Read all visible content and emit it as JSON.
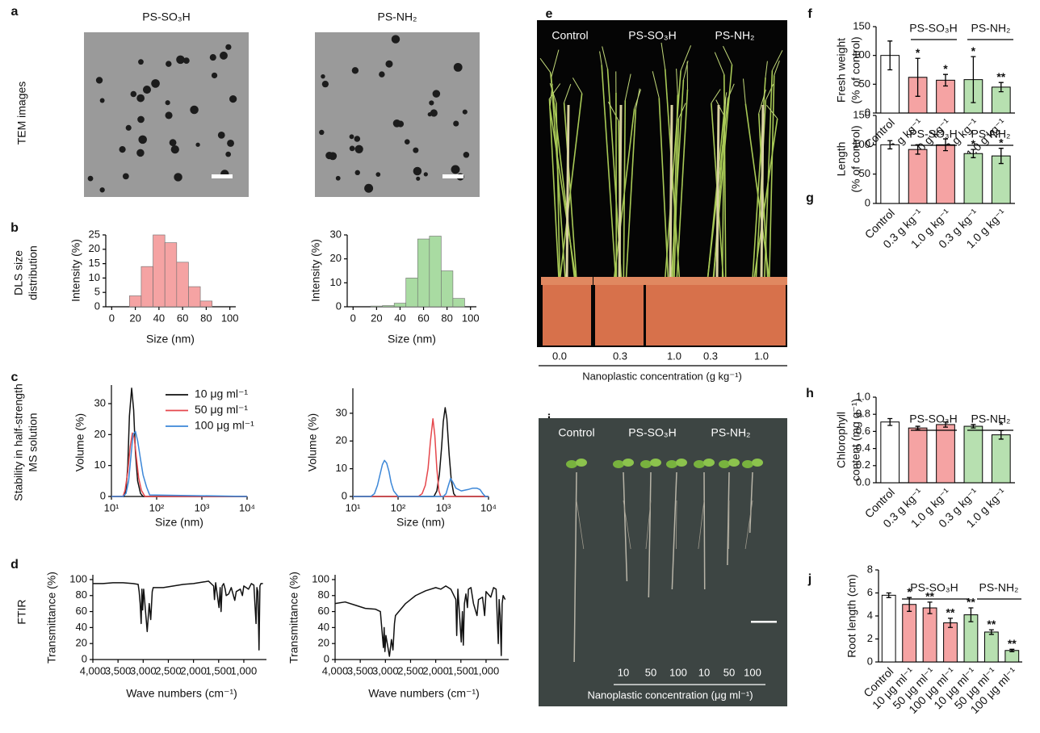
{
  "panel_letters": [
    "a",
    "b",
    "c",
    "d",
    "e",
    "f",
    "g",
    "h",
    "i",
    "j"
  ],
  "row_labels": {
    "tem": "TEM images",
    "dls": [
      "DLS size",
      "distribution"
    ],
    "stability": [
      "Stability in half-strength",
      "MS solution"
    ],
    "ftir": "FTIR"
  },
  "tem_images": [
    {
      "label": "PS-SO₃H"
    },
    {
      "label": "PS-NH₂"
    }
  ],
  "photos": [
    {
      "labels": [
        "Control",
        "PS-SO₃H",
        "PS-NH₂"
      ],
      "tick_labels": [
        "0.0",
        "0.3",
        "1.0",
        "0.3",
        "1.0"
      ],
      "xlabel": "Nanoplastic concentration (g kg⁻¹)"
    },
    {
      "labels": [
        "Control",
        "PS-SO₃H",
        "PS-NH₂"
      ],
      "tick_labels": [
        "10",
        "50",
        "100",
        "10",
        "50",
        "100"
      ],
      "xlabel": "Nanoplastic concentration (μg ml⁻¹)"
    }
  ],
  "chart_data": [
    {
      "type": "histogram",
      "xlabel": "Size (nm)",
      "ylabel": "Intensity (%)",
      "color": "#f5a3a3",
      "bins": [
        15,
        25,
        35,
        45,
        55,
        65,
        75,
        85
      ],
      "values": [
        3.8,
        14,
        25,
        22.3,
        15.5,
        7,
        2
      ],
      "xlim": [
        -5,
        105
      ],
      "xticks": [
        0,
        20,
        40,
        60,
        80,
        100
      ],
      "ylim": [
        0,
        25
      ],
      "yticks": [
        0,
        5,
        10,
        15,
        20,
        25
      ]
    },
    {
      "type": "histogram",
      "xlabel": "Size (nm)",
      "ylabel": "Intensity (%)",
      "color": "#a9dba2",
      "bins": [
        15,
        25,
        35,
        45,
        55,
        65,
        75,
        85,
        95
      ],
      "values": [
        0.3,
        0.5,
        1.5,
        12,
        28.3,
        29.5,
        15,
        3.5
      ],
      "xlim": [
        -5,
        105
      ],
      "xticks": [
        0,
        20,
        40,
        60,
        80,
        100
      ],
      "ylim": [
        0,
        30
      ],
      "yticks": [
        0,
        10,
        20,
        30
      ]
    },
    {
      "type": "line",
      "xlabel": "Size (nm)",
      "ylabel": "Volume (%)",
      "xlog": true,
      "xlim": [
        10,
        10000
      ],
      "xticks": [
        {
          "value": 10,
          "label": "10¹"
        },
        {
          "value": 100,
          "label": "10²"
        },
        {
          "value": 1000,
          "label": "10³"
        },
        {
          "value": 10000,
          "label": "10⁴"
        }
      ],
      "ylim": [
        0,
        36
      ],
      "yticks": [
        0,
        10,
        20,
        30
      ],
      "series": [
        {
          "name": "10 μg ml⁻¹",
          "color": "#111111",
          "x": [
            10,
            19,
            21,
            23,
            25,
            28,
            31,
            34,
            38,
            44,
            50,
            10000
          ],
          "values": [
            0,
            0,
            2,
            10,
            26,
            35,
            28,
            14,
            5,
            1,
            0,
            0
          ]
        },
        {
          "name": "50 μg ml⁻¹",
          "color": "#e5474c",
          "x": [
            10,
            18,
            20,
            23,
            26,
            29,
            32,
            36,
            40,
            46,
            55,
            10000
          ],
          "values": [
            0,
            0,
            2,
            8,
            16,
            20.5,
            19,
            12,
            6,
            2,
            0,
            0
          ]
        },
        {
          "name": "100 μg ml⁻¹",
          "color": "#3c87d8",
          "x": [
            10,
            18,
            21,
            24,
            27,
            30,
            34,
            38,
            44,
            50,
            60,
            70,
            10000
          ],
          "values": [
            0,
            0,
            1,
            5,
            13,
            20,
            21,
            18,
            12,
            7,
            3,
            0.5,
            0
          ]
        }
      ]
    },
    {
      "type": "line",
      "xlabel": "Size (nm)",
      "ylabel": "Volume (%)",
      "xlog": true,
      "xlim": [
        10,
        10000
      ],
      "xticks": [
        {
          "value": 10,
          "label": "10¹"
        },
        {
          "value": 100,
          "label": "10²"
        },
        {
          "value": 1000,
          "label": "10³"
        },
        {
          "value": 10000,
          "label": "10⁴"
        }
      ],
      "ylim": [
        0,
        39
      ],
      "yticks": [
        0,
        10,
        20,
        30
      ],
      "series": [
        {
          "color": "#111111",
          "x": [
            10,
            620,
            720,
            820,
            920,
            1000,
            1100,
            1200,
            1350,
            1500,
            1700,
            1900,
            10000
          ],
          "values": [
            0,
            0,
            2,
            8,
            18,
            27,
            32,
            28,
            15,
            6,
            1,
            0,
            0
          ]
        },
        {
          "color": "#e5474c",
          "x": [
            10,
            280,
            340,
            400,
            460,
            520,
            590,
            650,
            720,
            800,
            880,
            10000
          ],
          "values": [
            0,
            0,
            1,
            4,
            10,
            20,
            28,
            22,
            10,
            2,
            0,
            0
          ]
        },
        {
          "color": "#3c87d8",
          "x": [
            10,
            25,
            30,
            35,
            40,
            45,
            50,
            56,
            63,
            70,
            80,
            100,
            1000,
            1150,
            1300,
            1450,
            1650,
            1900,
            2500,
            3500,
            4500,
            5500,
            6500,
            7500,
            8500,
            10000
          ],
          "values": [
            0,
            0,
            1,
            4,
            8,
            11.5,
            13,
            12,
            9,
            5,
            2,
            0,
            0,
            1,
            4,
            6.5,
            5,
            3,
            2,
            2.5,
            3,
            3,
            2.5,
            1,
            0,
            0
          ]
        }
      ]
    },
    {
      "type": "line",
      "xlabel": "Wave numbers (cm⁻¹)",
      "ylabel": "Transmittance (%)",
      "xlim": [
        4000,
        550
      ],
      "xticks": [
        {
          "value": 4000,
          "label": "4,000"
        },
        {
          "value": 3500,
          "label": "3,500"
        },
        {
          "value": 3000,
          "label": "3,000"
        },
        {
          "value": 2500,
          "label": "2,500"
        },
        {
          "value": 2000,
          "label": "2,000"
        },
        {
          "value": 1500,
          "label": "1,500"
        },
        {
          "value": 1000,
          "label": "1,000"
        }
      ],
      "ylim": [
        0,
        106
      ],
      "yticks": [
        0,
        20,
        40,
        60,
        80,
        100
      ],
      "series": [
        {
          "color": "#111111",
          "x": [
            4000,
            3800,
            3600,
            3400,
            3200,
            3100,
            3080,
            3060,
            3040,
            3025,
            3010,
            2990,
            2920,
            2880,
            2850,
            2820,
            2800,
            2600,
            2400,
            2200,
            2000,
            1900,
            1800,
            1700,
            1600,
            1583,
            1560,
            1493,
            1470,
            1452,
            1430,
            1400,
            1370,
            1350,
            1300,
            1250,
            1180,
            1150,
            1070,
            1028,
            1000,
            906,
            850,
            800,
            757,
            740,
            720,
            698,
            680,
            660,
            620
          ],
          "values": [
            95,
            95,
            96,
            96,
            95,
            94,
            85,
            70,
            45,
            88,
            62,
            88,
            35,
            70,
            50,
            85,
            90,
            90,
            92,
            94,
            95,
            96,
            97,
            98,
            92,
            75,
            96,
            65,
            90,
            60,
            92,
            95,
            88,
            80,
            82,
            90,
            74,
            85,
            88,
            80,
            92,
            88,
            95,
            93,
            45,
            90,
            85,
            12,
            92,
            95,
            95
          ]
        }
      ]
    },
    {
      "type": "line",
      "xlabel": "Wave numbers (cm⁻¹)",
      "ylabel": "Transmittance (%)",
      "xlim": [
        4000,
        550
      ],
      "xticks": [
        {
          "value": 4000,
          "label": "4,000"
        },
        {
          "value": 3500,
          "label": "3,500"
        },
        {
          "value": 3000,
          "label": "3,000"
        },
        {
          "value": 2500,
          "label": "2,500"
        },
        {
          "value": 2000,
          "label": "2,000"
        },
        {
          "value": 1500,
          "label": "1,500"
        },
        {
          "value": 1000,
          "label": "1,000"
        }
      ],
      "ylim": [
        0,
        106
      ],
      "yticks": [
        0,
        20,
        40,
        60,
        80,
        100
      ],
      "series": [
        {
          "color": "#111111",
          "x": [
            4000,
            3800,
            3600,
            3400,
            3200,
            3100,
            3080,
            3060,
            3040,
            3025,
            3010,
            2990,
            2920,
            2880,
            2850,
            2820,
            2800,
            2600,
            2400,
            2200,
            2000,
            1900,
            1800,
            1700,
            1600,
            1583,
            1560,
            1493,
            1470,
            1452,
            1430,
            1400,
            1370,
            1350,
            1300,
            1250,
            1180,
            1150,
            1070,
            1028,
            1000,
            906,
            850,
            800,
            757,
            740,
            720,
            698,
            680,
            660,
            620
          ],
          "values": [
            70,
            72,
            68,
            64,
            63,
            60,
            45,
            30,
            15,
            40,
            10,
            30,
            4,
            25,
            12,
            45,
            55,
            70,
            80,
            86,
            90,
            88,
            92,
            88,
            75,
            30,
            88,
            22,
            60,
            18,
            70,
            82,
            65,
            88,
            90,
            70,
            55,
            75,
            78,
            55,
            85,
            78,
            90,
            88,
            20,
            75,
            55,
            5,
            70,
            80,
            75
          ]
        }
      ]
    },
    {
      "type": "bar",
      "ylabel": [
        "Fresh weight",
        "(% of control)"
      ],
      "group_labels": [
        "PS-SO₃H",
        "PS-NH₂"
      ],
      "categories": [
        "Control",
        "0.3 g kg⁻¹",
        "1.0 g kg⁻¹",
        "0.3 g kg⁻¹",
        "1.0 g kg⁻¹"
      ],
      "values": [
        100,
        62,
        57,
        58,
        45
      ],
      "errors": [
        25,
        33,
        10,
        40,
        8
      ],
      "annotations": [
        null,
        "*",
        "*",
        "*",
        "**"
      ],
      "colors": [
        "#ffffff",
        "#f5a3a3",
        "#f5a3a3",
        "#b7e0b0",
        "#b7e0b0"
      ],
      "ylim": [
        0,
        150
      ],
      "yticks": [
        0,
        50,
        100,
        150
      ]
    },
    {
      "type": "bar",
      "ylabel": [
        "Length",
        "(% of control)"
      ],
      "group_labels": [
        "PS-SO₃H",
        "PS-NH₂"
      ],
      "categories": [
        "Control",
        "0.3 g kg⁻¹",
        "1.0 g kg⁻¹",
        "0.3 g kg⁻¹",
        "1.0 g kg⁻¹"
      ],
      "values": [
        100,
        92,
        100,
        85,
        81
      ],
      "errors": [
        7,
        8,
        10,
        7,
        13
      ],
      "annotations": [
        null,
        null,
        null,
        "*",
        "*"
      ],
      "colors": [
        "#ffffff",
        "#f5a3a3",
        "#f5a3a3",
        "#b7e0b0",
        "#b7e0b0"
      ],
      "ylim": [
        0,
        150
      ],
      "yticks": [
        0,
        50,
        100,
        150
      ]
    },
    {
      "type": "bar",
      "ylabel": [
        "Chlorophyll",
        "content (mg g⁻¹)"
      ],
      "group_labels": [
        "PS-SO₃H",
        "PS-NH₂"
      ],
      "categories": [
        "Control",
        "0.3 g kg⁻¹",
        "1.0 g kg⁻¹",
        "0.3 g kg⁻¹",
        "1.0 g kg⁻¹"
      ],
      "values": [
        0.71,
        0.64,
        0.68,
        0.66,
        0.56
      ],
      "errors": [
        0.04,
        0.02,
        0.03,
        0.02,
        0.05
      ],
      "annotations": [
        null,
        null,
        null,
        null,
        "*"
      ],
      "colors": [
        "#ffffff",
        "#f5a3a3",
        "#f5a3a3",
        "#b7e0b0",
        "#b7e0b0"
      ],
      "ylim": [
        0,
        1
      ],
      "yticks": [
        {
          "value": 0,
          "label": "0.0"
        },
        0.2,
        0.4,
        0.6,
        0.8,
        {
          "value": 1,
          "label": "1.0"
        }
      ]
    },
    {
      "type": "bar",
      "ylabel": "Root length (cm)",
      "group_labels": [
        "PS-SO₃H",
        "PS-NH₂"
      ],
      "categories": [
        "Control",
        "10 μg ml⁻¹",
        "50 μg ml⁻¹",
        "100 μg ml⁻¹",
        "10 μg ml⁻¹",
        "50 μg ml⁻¹",
        "100 μg ml⁻¹"
      ],
      "values": [
        5.8,
        5.0,
        4.7,
        3.4,
        4.1,
        2.6,
        1.0
      ],
      "errors": [
        0.2,
        0.6,
        0.5,
        0.4,
        0.6,
        0.2,
        0.1
      ],
      "annotations": [
        null,
        "*",
        "**",
        "**",
        "**",
        "**",
        "**"
      ],
      "colors": [
        "#ffffff",
        "#f5a3a3",
        "#f5a3a3",
        "#f5a3a3",
        "#b7e0b0",
        "#b7e0b0",
        "#b7e0b0"
      ],
      "ylim": [
        0,
        8
      ],
      "yticks": [
        0,
        2,
        4,
        6,
        8
      ]
    }
  ]
}
